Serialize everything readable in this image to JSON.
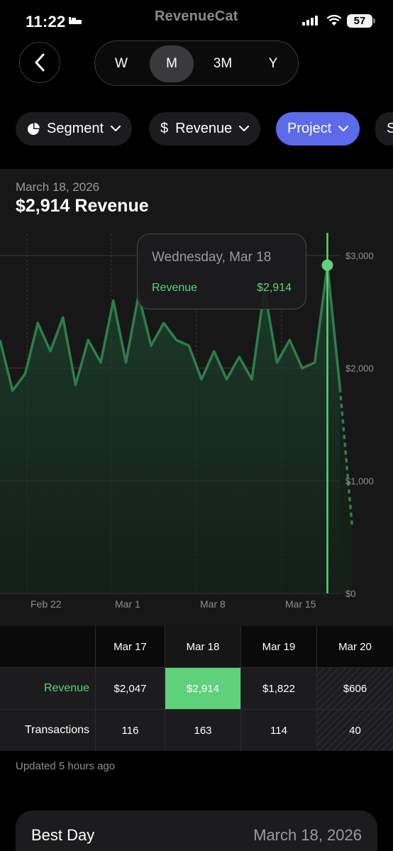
{
  "status_bar": {
    "time": "11:22",
    "app_name": "RevenueCat",
    "battery": "57"
  },
  "period_selector": {
    "options": [
      "W",
      "M",
      "3M",
      "Y"
    ],
    "selected": "M"
  },
  "chips": [
    {
      "label": "Segment",
      "icon": "pie-chart-icon"
    },
    {
      "label": "Revenue",
      "icon": "dollar-icon",
      "prefix": "$"
    },
    {
      "label": "Project",
      "icon": "chevron-down-icon",
      "active": true
    },
    {
      "label": "S",
      "icon": ""
    }
  ],
  "summary": {
    "date": "March 18, 2026",
    "headline": "$2,914 Revenue"
  },
  "tooltip": {
    "title": "Wednesday, Mar 18",
    "label": "Revenue",
    "value": "$2,914"
  },
  "colors": {
    "accent_green": "#5fd17a",
    "line_green": "#2f7d4a",
    "chip_active": "#5b6bea",
    "panel_bg": "#171717"
  },
  "chart_data": {
    "type": "area",
    "y_tick_labels": [
      "$3,000",
      "$2,000",
      "$1,000",
      "$0"
    ],
    "y_ticks": [
      3000,
      2000,
      1000,
      0
    ],
    "ylim": [
      0,
      3300
    ],
    "x_tick_labels": [
      "Feb 22",
      "Mar 1",
      "Mar 8",
      "Mar 15"
    ],
    "grid": true,
    "series": [
      {
        "values": [
          2250,
          1800,
          1950,
          2400,
          2150,
          2450,
          1850,
          2250,
          2050,
          2600,
          2050,
          2650,
          2200,
          2400,
          2250,
          2200,
          1900,
          2150,
          1900,
          2100,
          1900,
          2700,
          2050,
          2250,
          2000,
          2050,
          2914,
          1822
        ],
        "projected_values": [
          1822,
          606
        ]
      }
    ],
    "selected_index": 26
  },
  "table": {
    "columns": [
      "Mar 17",
      "Mar 18",
      "Mar 19",
      "Mar 20"
    ],
    "rows": [
      {
        "label": "Revenue",
        "values": [
          "$2,047",
          "$2,914",
          "$1,822",
          "$606"
        ]
      },
      {
        "label": "Transactions",
        "values": [
          "116",
          "163",
          "114",
          "40"
        ]
      }
    ],
    "highlight_col": 1
  },
  "updated_text": "Updated 5 hours ago",
  "best_day": {
    "label": "Best Day",
    "value": "March 18, 2026"
  }
}
